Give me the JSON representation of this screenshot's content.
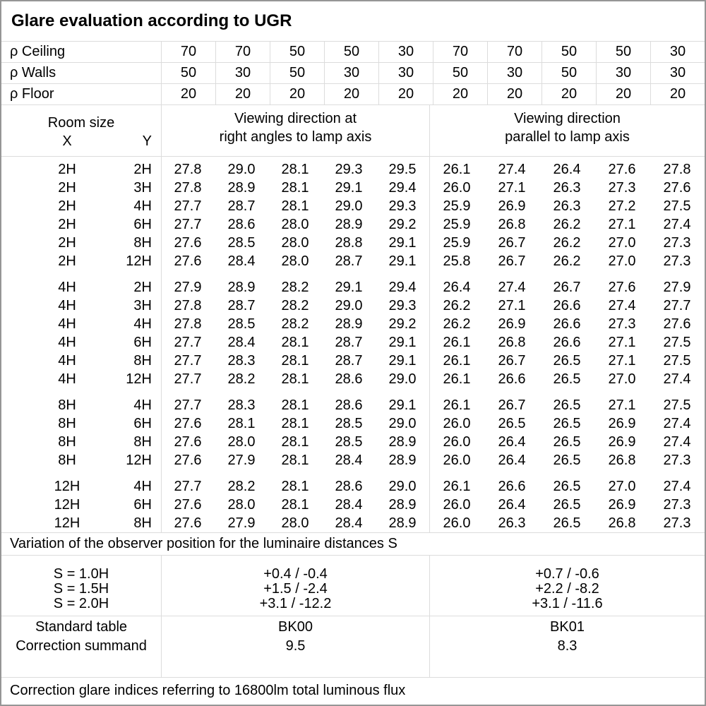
{
  "title": "Glare evaluation according to UGR",
  "reflectance": {
    "rows": [
      {
        "label": "ρ Ceiling",
        "values": [
          "70",
          "70",
          "50",
          "50",
          "30",
          "70",
          "70",
          "50",
          "50",
          "30"
        ]
      },
      {
        "label": "ρ Walls",
        "values": [
          "50",
          "30",
          "50",
          "30",
          "30",
          "50",
          "30",
          "50",
          "30",
          "30"
        ]
      },
      {
        "label": "ρ Floor",
        "values": [
          "20",
          "20",
          "20",
          "20",
          "20",
          "20",
          "20",
          "20",
          "20",
          "20"
        ]
      }
    ]
  },
  "room_size": {
    "title": "Room size",
    "x": "X",
    "y": "Y"
  },
  "sections": {
    "cross_line1": "Viewing direction at",
    "cross_line2": "right angles to lamp axis",
    "parallel_line1": "Viewing direction",
    "parallel_line2": "parallel to lamp axis"
  },
  "ugr_groups": [
    {
      "rows": [
        {
          "x": "2H",
          "y": "2H",
          "cross": [
            "27.8",
            "29.0",
            "28.1",
            "29.3",
            "29.5"
          ],
          "parallel": [
            "26.1",
            "27.4",
            "26.4",
            "27.6",
            "27.8"
          ]
        },
        {
          "x": "2H",
          "y": "3H",
          "cross": [
            "27.8",
            "28.9",
            "28.1",
            "29.1",
            "29.4"
          ],
          "parallel": [
            "26.0",
            "27.1",
            "26.3",
            "27.3",
            "27.6"
          ]
        },
        {
          "x": "2H",
          "y": "4H",
          "cross": [
            "27.7",
            "28.7",
            "28.1",
            "29.0",
            "29.3"
          ],
          "parallel": [
            "25.9",
            "26.9",
            "26.3",
            "27.2",
            "27.5"
          ]
        },
        {
          "x": "2H",
          "y": "6H",
          "cross": [
            "27.7",
            "28.6",
            "28.0",
            "28.9",
            "29.2"
          ],
          "parallel": [
            "25.9",
            "26.8",
            "26.2",
            "27.1",
            "27.4"
          ]
        },
        {
          "x": "2H",
          "y": "8H",
          "cross": [
            "27.6",
            "28.5",
            "28.0",
            "28.8",
            "29.1"
          ],
          "parallel": [
            "25.9",
            "26.7",
            "26.2",
            "27.0",
            "27.3"
          ]
        },
        {
          "x": "2H",
          "y": "12H",
          "cross": [
            "27.6",
            "28.4",
            "28.0",
            "28.7",
            "29.1"
          ],
          "parallel": [
            "25.8",
            "26.7",
            "26.2",
            "27.0",
            "27.3"
          ]
        }
      ]
    },
    {
      "rows": [
        {
          "x": "4H",
          "y": "2H",
          "cross": [
            "27.9",
            "28.9",
            "28.2",
            "29.1",
            "29.4"
          ],
          "parallel": [
            "26.4",
            "27.4",
            "26.7",
            "27.6",
            "27.9"
          ]
        },
        {
          "x": "4H",
          "y": "3H",
          "cross": [
            "27.8",
            "28.7",
            "28.2",
            "29.0",
            "29.3"
          ],
          "parallel": [
            "26.2",
            "27.1",
            "26.6",
            "27.4",
            "27.7"
          ]
        },
        {
          "x": "4H",
          "y": "4H",
          "cross": [
            "27.8",
            "28.5",
            "28.2",
            "28.9",
            "29.2"
          ],
          "parallel": [
            "26.2",
            "26.9",
            "26.6",
            "27.3",
            "27.6"
          ]
        },
        {
          "x": "4H",
          "y": "6H",
          "cross": [
            "27.7",
            "28.4",
            "28.1",
            "28.7",
            "29.1"
          ],
          "parallel": [
            "26.1",
            "26.8",
            "26.6",
            "27.1",
            "27.5"
          ]
        },
        {
          "x": "4H",
          "y": "8H",
          "cross": [
            "27.7",
            "28.3",
            "28.1",
            "28.7",
            "29.1"
          ],
          "parallel": [
            "26.1",
            "26.7",
            "26.5",
            "27.1",
            "27.5"
          ]
        },
        {
          "x": "4H",
          "y": "12H",
          "cross": [
            "27.7",
            "28.2",
            "28.1",
            "28.6",
            "29.0"
          ],
          "parallel": [
            "26.1",
            "26.6",
            "26.5",
            "27.0",
            "27.4"
          ]
        }
      ]
    },
    {
      "rows": [
        {
          "x": "8H",
          "y": "4H",
          "cross": [
            "27.7",
            "28.3",
            "28.1",
            "28.6",
            "29.1"
          ],
          "parallel": [
            "26.1",
            "26.7",
            "26.5",
            "27.1",
            "27.5"
          ]
        },
        {
          "x": "8H",
          "y": "6H",
          "cross": [
            "27.6",
            "28.1",
            "28.1",
            "28.5",
            "29.0"
          ],
          "parallel": [
            "26.0",
            "26.5",
            "26.5",
            "26.9",
            "27.4"
          ]
        },
        {
          "x": "8H",
          "y": "8H",
          "cross": [
            "27.6",
            "28.0",
            "28.1",
            "28.5",
            "28.9"
          ],
          "parallel": [
            "26.0",
            "26.4",
            "26.5",
            "26.9",
            "27.4"
          ]
        },
        {
          "x": "8H",
          "y": "12H",
          "cross": [
            "27.6",
            "27.9",
            "28.1",
            "28.4",
            "28.9"
          ],
          "parallel": [
            "26.0",
            "26.4",
            "26.5",
            "26.8",
            "27.3"
          ]
        }
      ]
    },
    {
      "rows": [
        {
          "x": "12H",
          "y": "4H",
          "cross": [
            "27.7",
            "28.2",
            "28.1",
            "28.6",
            "29.0"
          ],
          "parallel": [
            "26.1",
            "26.6",
            "26.5",
            "27.0",
            "27.4"
          ]
        },
        {
          "x": "12H",
          "y": "6H",
          "cross": [
            "27.6",
            "28.0",
            "28.1",
            "28.4",
            "28.9"
          ],
          "parallel": [
            "26.0",
            "26.4",
            "26.5",
            "26.9",
            "27.3"
          ]
        },
        {
          "x": "12H",
          "y": "8H",
          "cross": [
            "27.6",
            "27.9",
            "28.0",
            "28.4",
            "28.9"
          ],
          "parallel": [
            "26.0",
            "26.3",
            "26.5",
            "26.8",
            "27.3"
          ]
        }
      ]
    }
  ],
  "variation": {
    "note": "Variation of the observer position for the luminaire distances S",
    "rows": [
      {
        "label": "S = 1.0H",
        "cross": "+0.4 / -0.4",
        "parallel": "+0.7 / -0.6"
      },
      {
        "label": "S = 1.5H",
        "cross": "+1.5 / -2.4",
        "parallel": "+2.2 / -8.2"
      },
      {
        "label": "S = 2.0H",
        "cross": "+3.1 / -12.2",
        "parallel": "+3.1 / -11.6"
      }
    ]
  },
  "standard": {
    "row1_label": "Standard table",
    "row2_label": "Correction summand",
    "cross": [
      "BK00",
      "9.5"
    ],
    "parallel": [
      "BK01",
      "8.3"
    ]
  },
  "footer": "Correction glare indices referring to 16800lm total luminous flux"
}
